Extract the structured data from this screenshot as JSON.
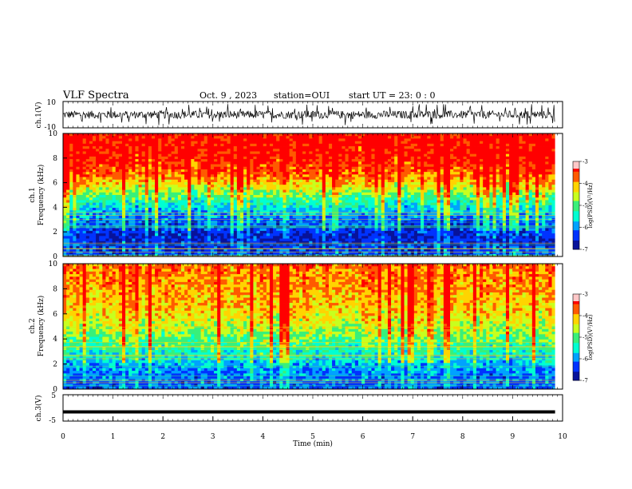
{
  "header": {
    "title": "VLF Spectra",
    "date": "Oct. 9 , 2023",
    "station": "station=OUI",
    "start": "start UT = 23: 0 : 0"
  },
  "colors": {
    "spectrogram_scale": [
      "#08139a",
      "#0033ff",
      "#00a2ff",
      "#00ffd2",
      "#38f07a",
      "#c8ff1e",
      "#ffd400",
      "#ff5a00",
      "#ff0000",
      "#ffc8c8"
    ]
  },
  "chart_data": [
    {
      "type": "line",
      "panel": "ch1-waveform",
      "ylabel": "ch.1(V)",
      "ylim": [
        -10,
        10
      ],
      "y_ticks": [
        "10",
        "-10"
      ],
      "description_band": [
        -3,
        3
      ],
      "xlim": [
        0,
        10
      ]
    },
    {
      "type": "heatmap",
      "panel": "ch1-spectrogram",
      "ylabel_line1": "ch.1",
      "ylabel_line2": "Frequency (kHz)",
      "ylim": [
        0,
        10
      ],
      "y_ticks": [
        "0",
        "2",
        "4",
        "6",
        "8",
        "10"
      ],
      "xlim": [
        0,
        9.85
      ],
      "colorbar": {
        "label": "log(PSD)(V²/Hz)",
        "ticks": [
          "-3",
          "-4",
          "-5",
          "-6",
          "-7"
        ],
        "range": [
          -7,
          -3
        ]
      },
      "profile_by_freq_khz": [
        [
          0,
          -6.3
        ],
        [
          1.5,
          -6.6
        ],
        [
          3,
          -6.1
        ],
        [
          4.5,
          -5.3
        ],
        [
          5.5,
          -4.5
        ],
        [
          6.5,
          -3.8
        ],
        [
          8,
          -3.3
        ],
        [
          10,
          -3.2
        ]
      ]
    },
    {
      "type": "heatmap",
      "panel": "ch2-spectrogram",
      "ylabel_line1": "ch.2",
      "ylabel_line2": "Frequency (kHz)",
      "ylim": [
        0,
        10
      ],
      "y_ticks": [
        "0",
        "2",
        "4",
        "6",
        "8",
        "10"
      ],
      "xlim": [
        0,
        9.85
      ],
      "colorbar": {
        "label": "log(PSD)(V²/Hz)",
        "ticks": [
          "-3",
          "-4",
          "-5",
          "-6",
          "-7"
        ],
        "range": [
          -7,
          -3
        ]
      },
      "profile_by_freq_khz": [
        [
          0,
          -6.2
        ],
        [
          1.5,
          -6.0
        ],
        [
          3,
          -5.3
        ],
        [
          4.5,
          -4.7
        ],
        [
          6,
          -4.2
        ],
        [
          8,
          -3.9
        ],
        [
          10,
          -3.7
        ]
      ]
    },
    {
      "type": "line",
      "panel": "ch3-waveform",
      "ylabel": "ch.3(V)",
      "ylim": [
        -5,
        5
      ],
      "y_ticks": [
        "5",
        "-5"
      ],
      "constant_value": -1.5,
      "xlabel": "Time (min)",
      "x_ticks": [
        "0",
        "1",
        "2",
        "3",
        "4",
        "5",
        "6",
        "7",
        "8",
        "9",
        "10"
      ],
      "xlim": [
        0,
        10
      ]
    }
  ]
}
